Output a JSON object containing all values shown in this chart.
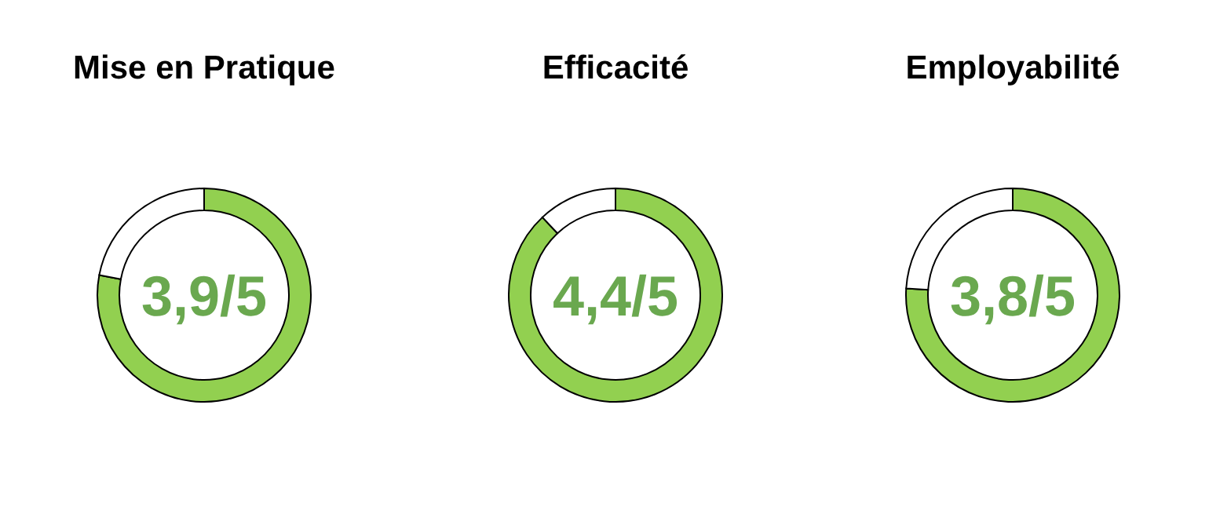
{
  "chart_data": [
    {
      "type": "donut",
      "title": "Mise en Pratique",
      "categories": [
        null,
        null
      ],
      "values": [
        78,
        22
      ],
      "colors": [
        "#92d050",
        "#ffffff"
      ],
      "annotations": [
        "3,9/5"
      ]
    },
    {
      "type": "donut",
      "title": "Efficacité",
      "categories": [
        null,
        null
      ],
      "values": [
        88,
        12
      ],
      "colors": [
        "#92d050",
        "#ffffff"
      ],
      "annotations": [
        "4,4/5"
      ]
    },
    {
      "type": "donut",
      "title": "Employabilité",
      "categories": [
        null,
        null
      ],
      "values": [
        76,
        24
      ],
      "colors": [
        "#92d050",
        "#ffffff"
      ],
      "annotations": [
        "3,8/5"
      ]
    }
  ]
}
